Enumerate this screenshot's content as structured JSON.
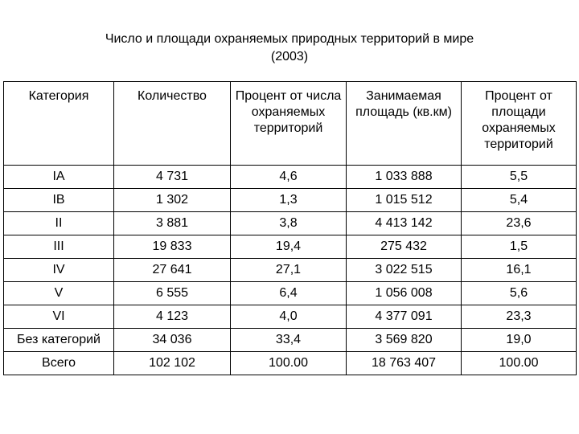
{
  "title": {
    "line1": "Число и площади охраняемых природных территорий в мире",
    "line2": "(2003)"
  },
  "table": {
    "headers": [
      "Категория",
      "Количество",
      "Процент от числа охраняемых территорий",
      "Занимаемая площадь (кв.км)",
      "Процент от площади охраняемых территорий"
    ],
    "rows": [
      [
        "IA",
        "4  731",
        "4,6",
        "1 033 888",
        "5,5"
      ],
      [
        "IB",
        "1 302",
        "1,3",
        "1 015 512",
        "5,4"
      ],
      [
        "II",
        "3 881",
        "3,8",
        "4 413 142",
        "23,6"
      ],
      [
        "III",
        "19 833",
        "19,4",
        "275 432",
        "1,5"
      ],
      [
        "IV",
        "27 641",
        "27,1",
        "3 022 515",
        "16,1"
      ],
      [
        "V",
        "6 555",
        "6,4",
        "1 056 008",
        "5,6"
      ],
      [
        "VI",
        "4 123",
        "4,0",
        "4 377 091",
        "23,3"
      ],
      [
        "Без категорий",
        "34 036",
        "33,4",
        "3 569 820",
        "19,0"
      ],
      [
        "Всего",
        "102 102",
        "100.00",
        "18 763 407",
        "100.00"
      ]
    ]
  }
}
